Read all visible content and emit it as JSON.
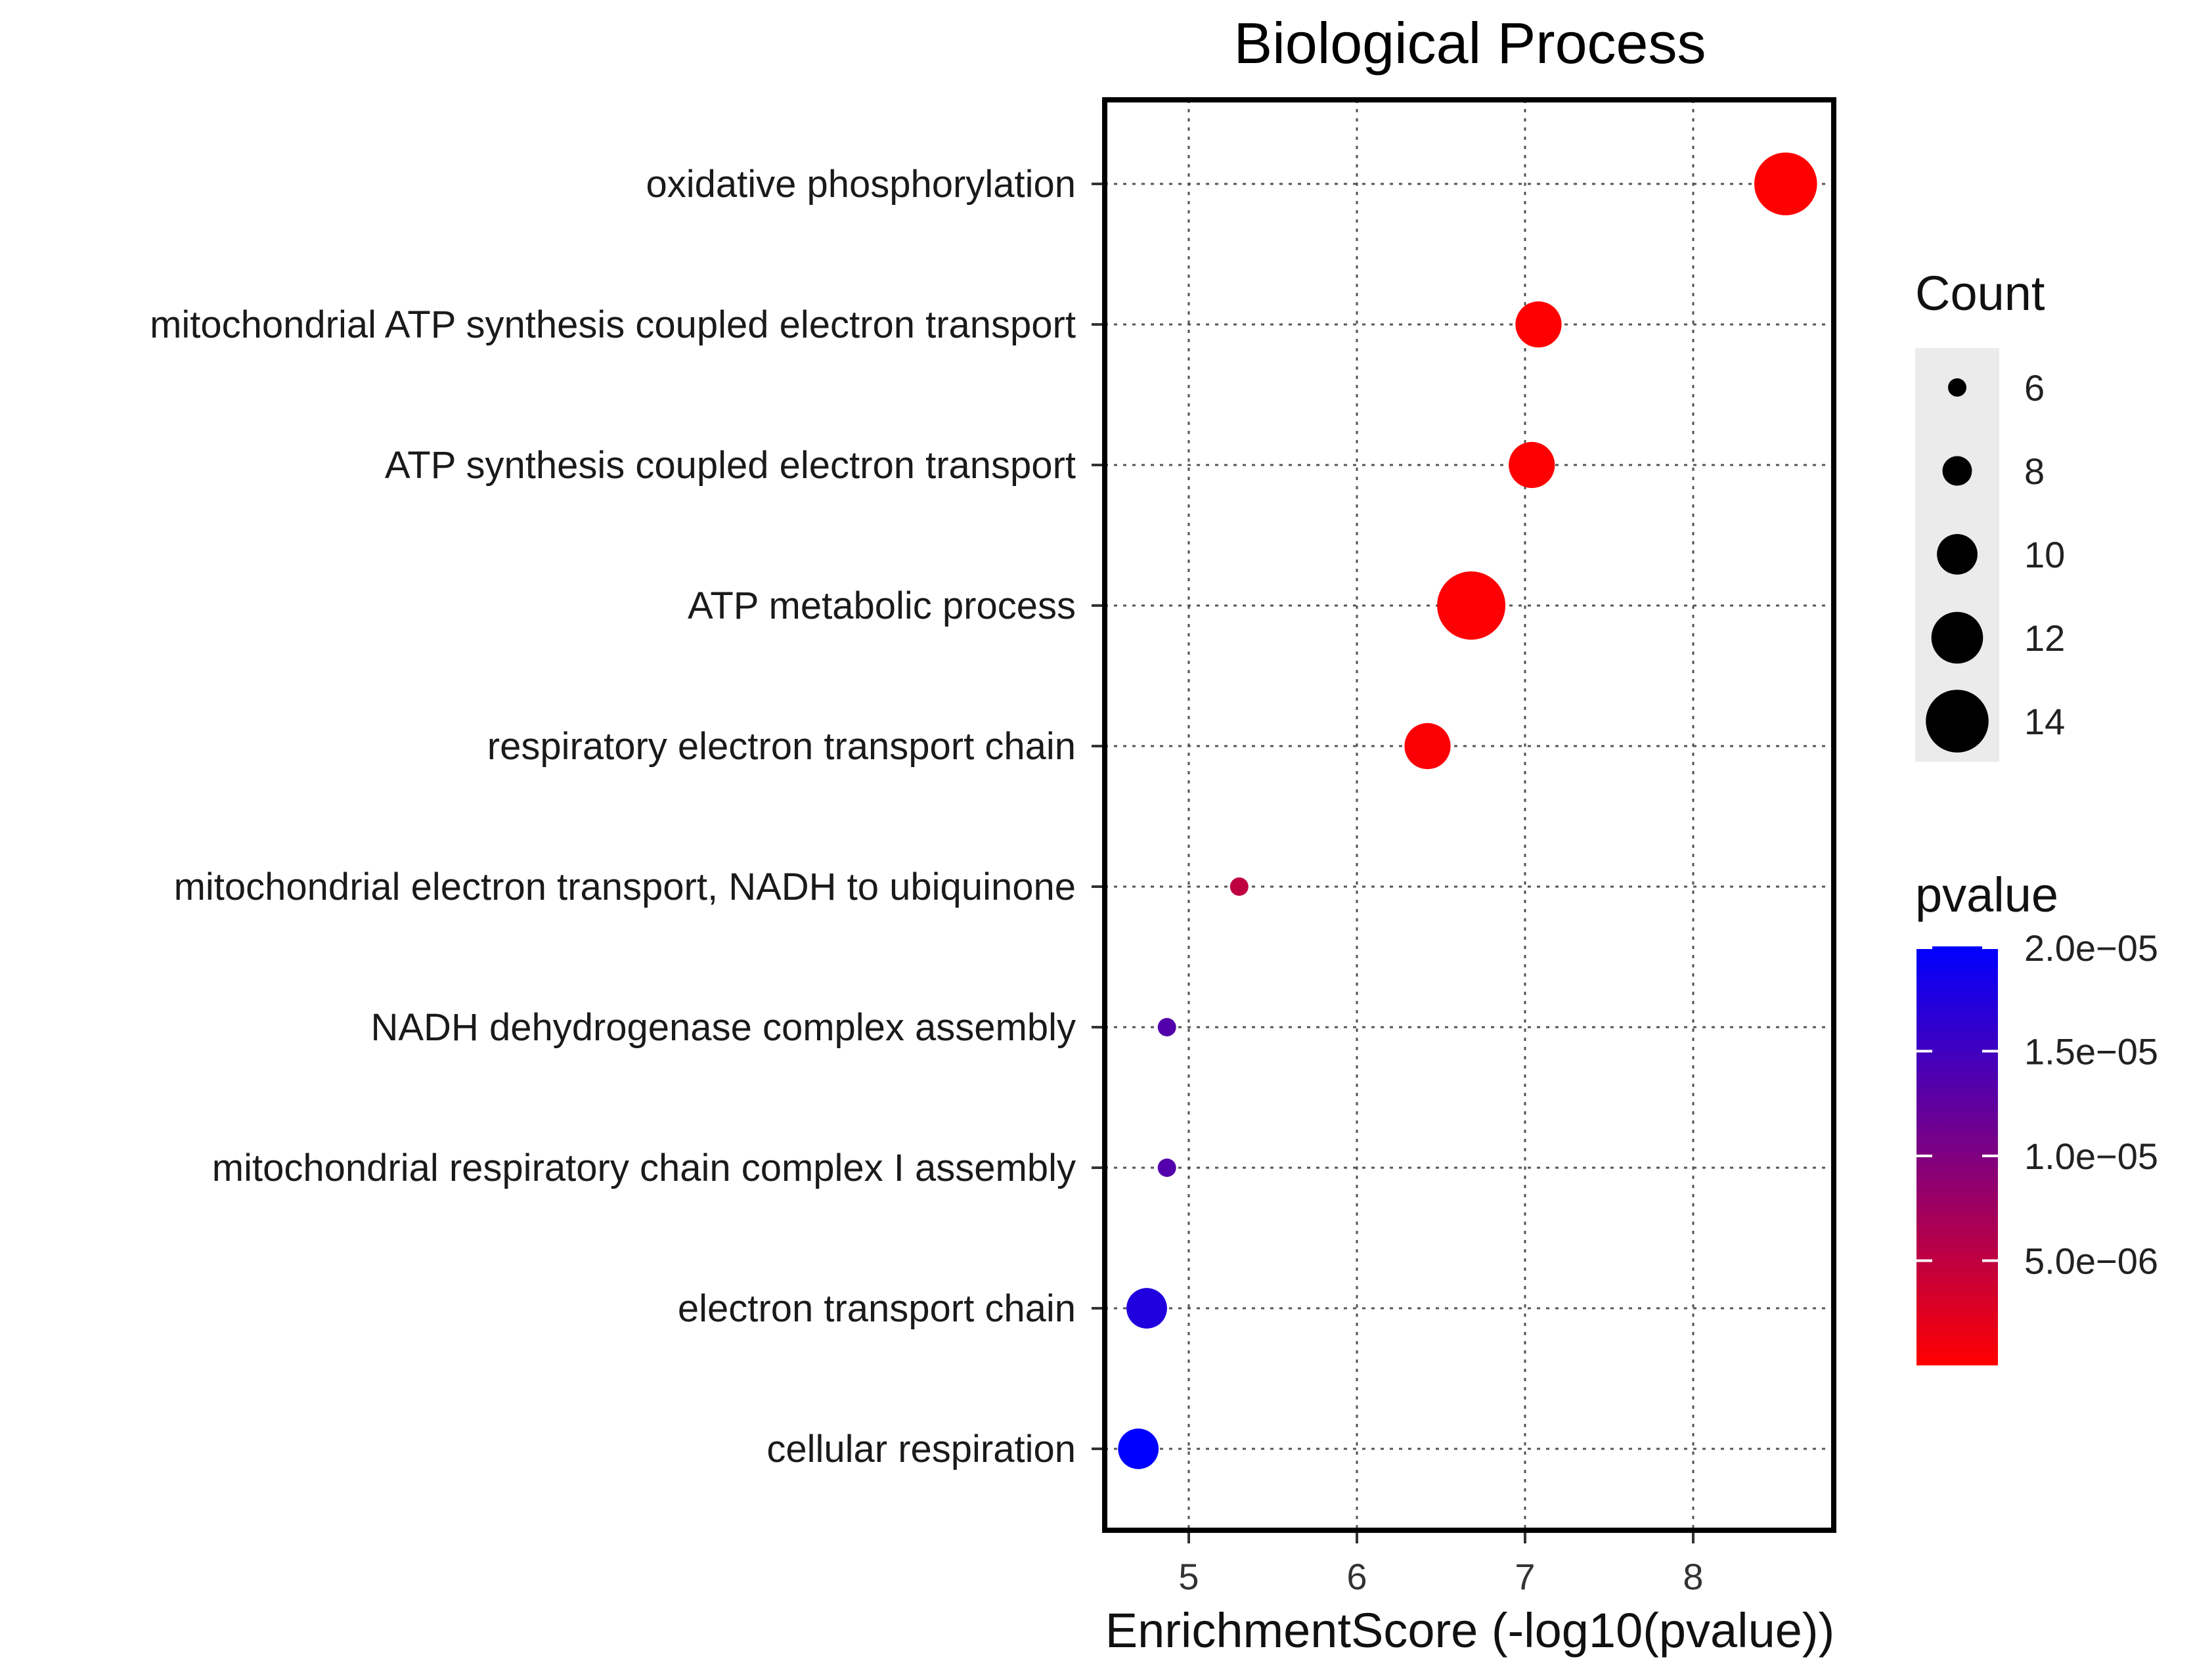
{
  "chart_data": {
    "type": "scatter",
    "title": "Biological Process",
    "xlabel": "EnrichmentScore (-log10(pvalue))",
    "ylabel": "",
    "xlim": [
      4.5,
      8.85
    ],
    "xticks": [
      "5",
      "6",
      "7",
      "8"
    ],
    "categories": [
      "oxidative phosphorylation",
      "mitochondrial ATP synthesis coupled electron transport",
      "ATP synthesis coupled electron transport",
      "ATP metabolic process",
      "respiratory electron transport chain",
      "mitochondrial electron transport, NADH to ubiquinone",
      "NADH dehydrogenase complex assembly",
      "mitochondrial respiratory chain complex I assembly",
      "electron transport chain",
      "cellular respiration"
    ],
    "points": [
      {
        "term": "oxidative phosphorylation",
        "x": 8.55,
        "count": 14,
        "pvalue": 2.8e-09
      },
      {
        "term": "mitochondrial ATP synthesis coupled electron transport",
        "x": 7.08,
        "count": 11,
        "pvalue": 8.3e-08
      },
      {
        "term": "ATP synthesis coupled electron transport",
        "x": 7.04,
        "count": 11,
        "pvalue": 9.1e-08
      },
      {
        "term": "ATP metabolic process",
        "x": 6.68,
        "count": 15,
        "pvalue": 2.1e-07
      },
      {
        "term": "respiratory electron transport chain",
        "x": 6.42,
        "count": 11,
        "pvalue": 3.8e-07
      },
      {
        "term": "mitochondrial electron transport, NADH to ubiquinone",
        "x": 5.3,
        "count": 6,
        "pvalue": 5e-06
      },
      {
        "term": "NADH dehydrogenase complex assembly",
        "x": 4.87,
        "count": 6,
        "pvalue": 1.35e-05
      },
      {
        "term": "mitochondrial respiratory chain complex I assembly",
        "x": 4.87,
        "count": 6,
        "pvalue": 1.35e-05
      },
      {
        "term": "electron transport chain",
        "x": 4.75,
        "count": 10,
        "pvalue": 1.75e-05
      },
      {
        "term": "cellular respiration",
        "x": 4.7,
        "count": 10,
        "pvalue": 2e-05
      }
    ],
    "size_legend": {
      "title": "Count",
      "values": [
        6,
        8,
        10,
        12,
        14
      ],
      "labels": [
        "6",
        "8",
        "10",
        "12",
        "14"
      ]
    },
    "color_legend": {
      "title": "pvalue",
      "low_color": "#ff0000",
      "high_color": "#0000ff",
      "range": [
        0,
        2e-05
      ],
      "ticks": [
        2e-05,
        1.5e-05,
        1e-05,
        5e-06
      ],
      "tick_labels": [
        "2.0e−05",
        "1.5e−05",
        "1.0e−05",
        "5.0e−06"
      ]
    }
  }
}
